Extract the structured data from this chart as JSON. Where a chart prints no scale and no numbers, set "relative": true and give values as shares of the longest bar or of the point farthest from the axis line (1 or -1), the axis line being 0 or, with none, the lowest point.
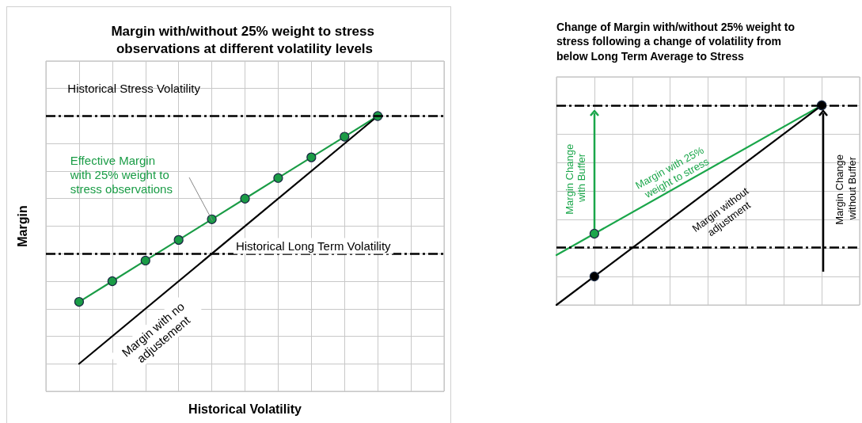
{
  "chart_data": [
    {
      "type": "line",
      "title": "Margin with/without 25% weight to stress observations at different volatility levels",
      "xlabel": "Historical Volatility",
      "ylabel": "Margin",
      "relative": true,
      "grid": true,
      "legend": false,
      "categories": [
        null,
        null,
        null,
        null,
        null,
        null,
        null,
        null,
        null,
        null,
        null,
        null,
        null
      ],
      "series": [
        {
          "name": "Effective Margin with 25% weight to stress observations",
          "color": "#1a9c46",
          "marker": "circle",
          "values": [
            null,
            0.325,
            0.4,
            0.475,
            0.55,
            0.625,
            0.7,
            0.775,
            0.85,
            0.925,
            1,
            null,
            null
          ]
        },
        {
          "name": "Margin with no adjustement",
          "color": "#000000",
          "marker": "none",
          "values": [
            null,
            0.1,
            null,
            null,
            null,
            null,
            null,
            null,
            null,
            null,
            1,
            null,
            null
          ]
        }
      ],
      "ref_lines": [
        {
          "axis": "y",
          "value": 1,
          "label": "Historical Stress Volatility",
          "line_style": "dashed",
          "color": "#000000"
        },
        {
          "axis": "y",
          "value": 0.5,
          "label": "Historical Long Term Volatility",
          "line_style": "dashed",
          "color": "#000000"
        }
      ]
    },
    {
      "type": "line",
      "title": "Change of Margin with/without 25% weight to stress following a change of volatility from below Long Term Average to Stress",
      "relative": true,
      "grid": true,
      "legend": false,
      "categories": [
        null,
        null,
        null,
        null,
        null,
        null,
        null,
        null,
        null
      ],
      "series": [
        {
          "name": "Margin with 25% weight to stress",
          "color": "#1aa64a",
          "marker": "circle",
          "values": [
            0.25,
            0.357,
            null,
            null,
            null,
            null,
            null,
            1,
            null
          ]
        },
        {
          "name": "Margin without adjustment",
          "color": "#000000",
          "marker": "circle",
          "values": [
            0,
            0.143,
            null,
            null,
            null,
            null,
            null,
            1,
            null
          ]
        }
      ],
      "ref_lines": [
        {
          "axis": "y",
          "value": 1,
          "line_style": "dashed",
          "color": "#000000"
        },
        {
          "axis": "y",
          "value": 0.286,
          "line_style": "dashed",
          "color": "#000000"
        }
      ],
      "annotations": [
        "Margin Change with Buffer",
        "Margin Change without Buffer"
      ]
    }
  ]
}
